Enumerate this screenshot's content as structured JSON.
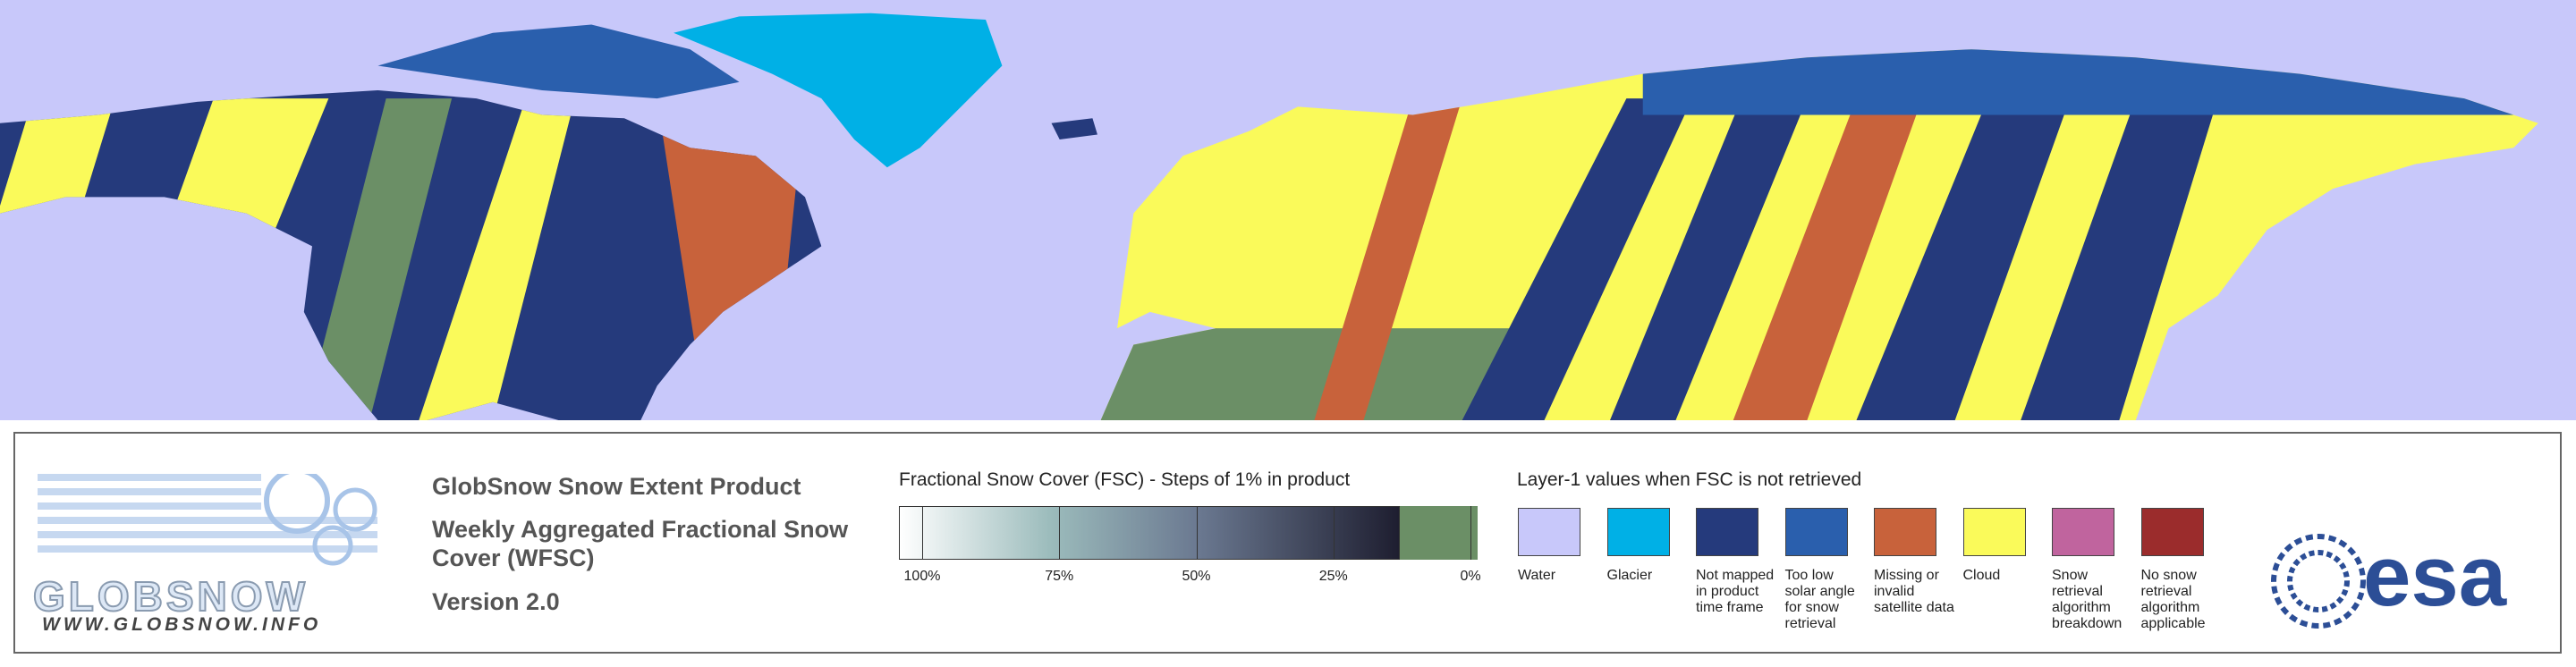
{
  "logo": {
    "name": "GLOBSNOW",
    "url": "WWW.GLOBSNOW.INFO"
  },
  "product": {
    "title": "GlobSnow Snow Extent Product",
    "subtitle_lines": [
      "Weekly Aggregated Fractional Snow",
      "Cover (WFSC)"
    ],
    "version": "Version 2.0"
  },
  "fsc_scale": {
    "title": "Fractional Snow Cover (FSC) - Steps of 1% in product",
    "ticks": [
      "100%",
      "75%",
      "50%",
      "25%",
      "0%"
    ]
  },
  "layer1": {
    "title": "Layer-1 values when FSC is not retrieved",
    "items": [
      {
        "label": "Water",
        "color": "#c8c8fa"
      },
      {
        "label": "Glacier",
        "color": "#00b0e6"
      },
      {
        "label": "Not mapped in product time frame",
        "color": "#253a7c"
      },
      {
        "label": "Too low solar angle for snow retrieval",
        "color": "#2a5fad"
      },
      {
        "label": "Missing or invalid satellite data",
        "color": "#c8623b"
      },
      {
        "label": "Cloud",
        "color": "#fafa5a"
      },
      {
        "label": "Snow retrieval algorithm breakdown",
        "color": "#c0649e"
      },
      {
        "label": "No snow retrieval algorithm applicable",
        "color": "#9b2c2c"
      }
    ]
  },
  "agency": "esa"
}
